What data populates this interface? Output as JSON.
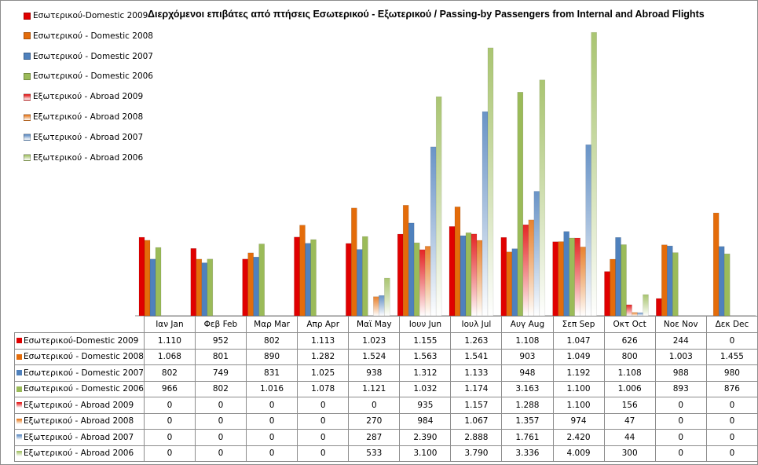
{
  "chart_data": {
    "type": "bar",
    "title": "Διερχόμενοι επιβάτες από πτήσεις Εσωτερικού - Εξωτερικού / Passing-by Passengers from Internal and Abroad Flights",
    "categories": [
      "Ιαν  Jan",
      "Φεβ  Feb",
      "Μαρ  Mar",
      "Απρ  Apr",
      "Μαϊ  May",
      "Ιουν  Jun",
      "Ιουλ  Jul",
      "Αυγ  Aug",
      "Σεπ  Sep",
      "Οκτ  Oct",
      "Νοε  Nov",
      "Δεκ  Dec"
    ],
    "ylim": [
      0,
      4400
    ],
    "grid": false,
    "legend_position": "top-left",
    "series": [
      {
        "name": "Εσωτερικού-Domestic 2009",
        "color": "#e00000",
        "style": "solid",
        "values": [
          1110,
          952,
          802,
          1113,
          1023,
          1155,
          1263,
          1108,
          1047,
          626,
          244,
          0
        ],
        "labels": [
          "1.110",
          "952",
          "802",
          "1.113",
          "1.023",
          "1.155",
          "1.263",
          "1.108",
          "1.047",
          "626",
          "244",
          "0"
        ]
      },
      {
        "name": "Εσωτερικού - Domestic 2008",
        "color": "#e46c0a",
        "style": "solid",
        "values": [
          1068,
          801,
          890,
          1282,
          1524,
          1563,
          1541,
          903,
          1049,
          800,
          1003,
          1455
        ],
        "labels": [
          "1.068",
          "801",
          "890",
          "1.282",
          "1.524",
          "1.563",
          "1.541",
          "903",
          "1.049",
          "800",
          "1.003",
          "1.455"
        ]
      },
      {
        "name": "Εσωτερικού - Domestic 2007",
        "color": "#4f81bd",
        "style": "solid",
        "values": [
          802,
          749,
          831,
          1025,
          938,
          1312,
          1133,
          948,
          1192,
          1108,
          988,
          980
        ],
        "labels": [
          "802",
          "749",
          "831",
          "1.025",
          "938",
          "1.312",
          "1.133",
          "948",
          "1.192",
          "1.108",
          "988",
          "980"
        ]
      },
      {
        "name": "Εσωτερικού - Domestic 2006",
        "color": "#9bbb59",
        "style": "solid",
        "values": [
          966,
          802,
          1016,
          1078,
          1121,
          1032,
          1174,
          3163,
          1100,
          1006,
          893,
          876
        ],
        "labels": [
          "966",
          "802",
          "1.016",
          "1.078",
          "1.121",
          "1.032",
          "1.174",
          "3.163",
          "1.100",
          "1.006",
          "893",
          "876"
        ]
      },
      {
        "name": "Εξωτερικού - Abroad 2009",
        "color": "#e00000",
        "style": "gradient",
        "values": [
          0,
          0,
          0,
          0,
          0,
          935,
          1157,
          1288,
          1100,
          156,
          0,
          0
        ],
        "labels": [
          "0",
          "0",
          "0",
          "0",
          "0",
          "935",
          "1.157",
          "1.288",
          "1.100",
          "156",
          "0",
          "0"
        ]
      },
      {
        "name": "Εξωτερικού - Abroad 2008",
        "color": "#e46c0a",
        "style": "gradient",
        "values": [
          0,
          0,
          0,
          0,
          270,
          984,
          1067,
          1357,
          974,
          47,
          0,
          0
        ],
        "labels": [
          "0",
          "0",
          "0",
          "0",
          "270",
          "984",
          "1.067",
          "1.357",
          "974",
          "47",
          "0",
          "0"
        ]
      },
      {
        "name": "Εξωτερικού - Abroad 2007",
        "color": "#4f81bd",
        "style": "gradient",
        "values": [
          0,
          0,
          0,
          0,
          287,
          2390,
          2888,
          1761,
          2420,
          44,
          0,
          0
        ],
        "labels": [
          "0",
          "0",
          "0",
          "0",
          "287",
          "2.390",
          "2.888",
          "1.761",
          "2.420",
          "44",
          "0",
          "0"
        ]
      },
      {
        "name": "Εξωτερικού - Abroad 2006",
        "color": "#9bbb59",
        "style": "gradient",
        "values": [
          0,
          0,
          0,
          0,
          533,
          3100,
          3790,
          3336,
          4009,
          300,
          0,
          0
        ],
        "labels": [
          "0",
          "0",
          "0",
          "0",
          "533",
          "3.100",
          "3.790",
          "3.336",
          "4.009",
          "300",
          "0",
          "0"
        ]
      }
    ]
  }
}
